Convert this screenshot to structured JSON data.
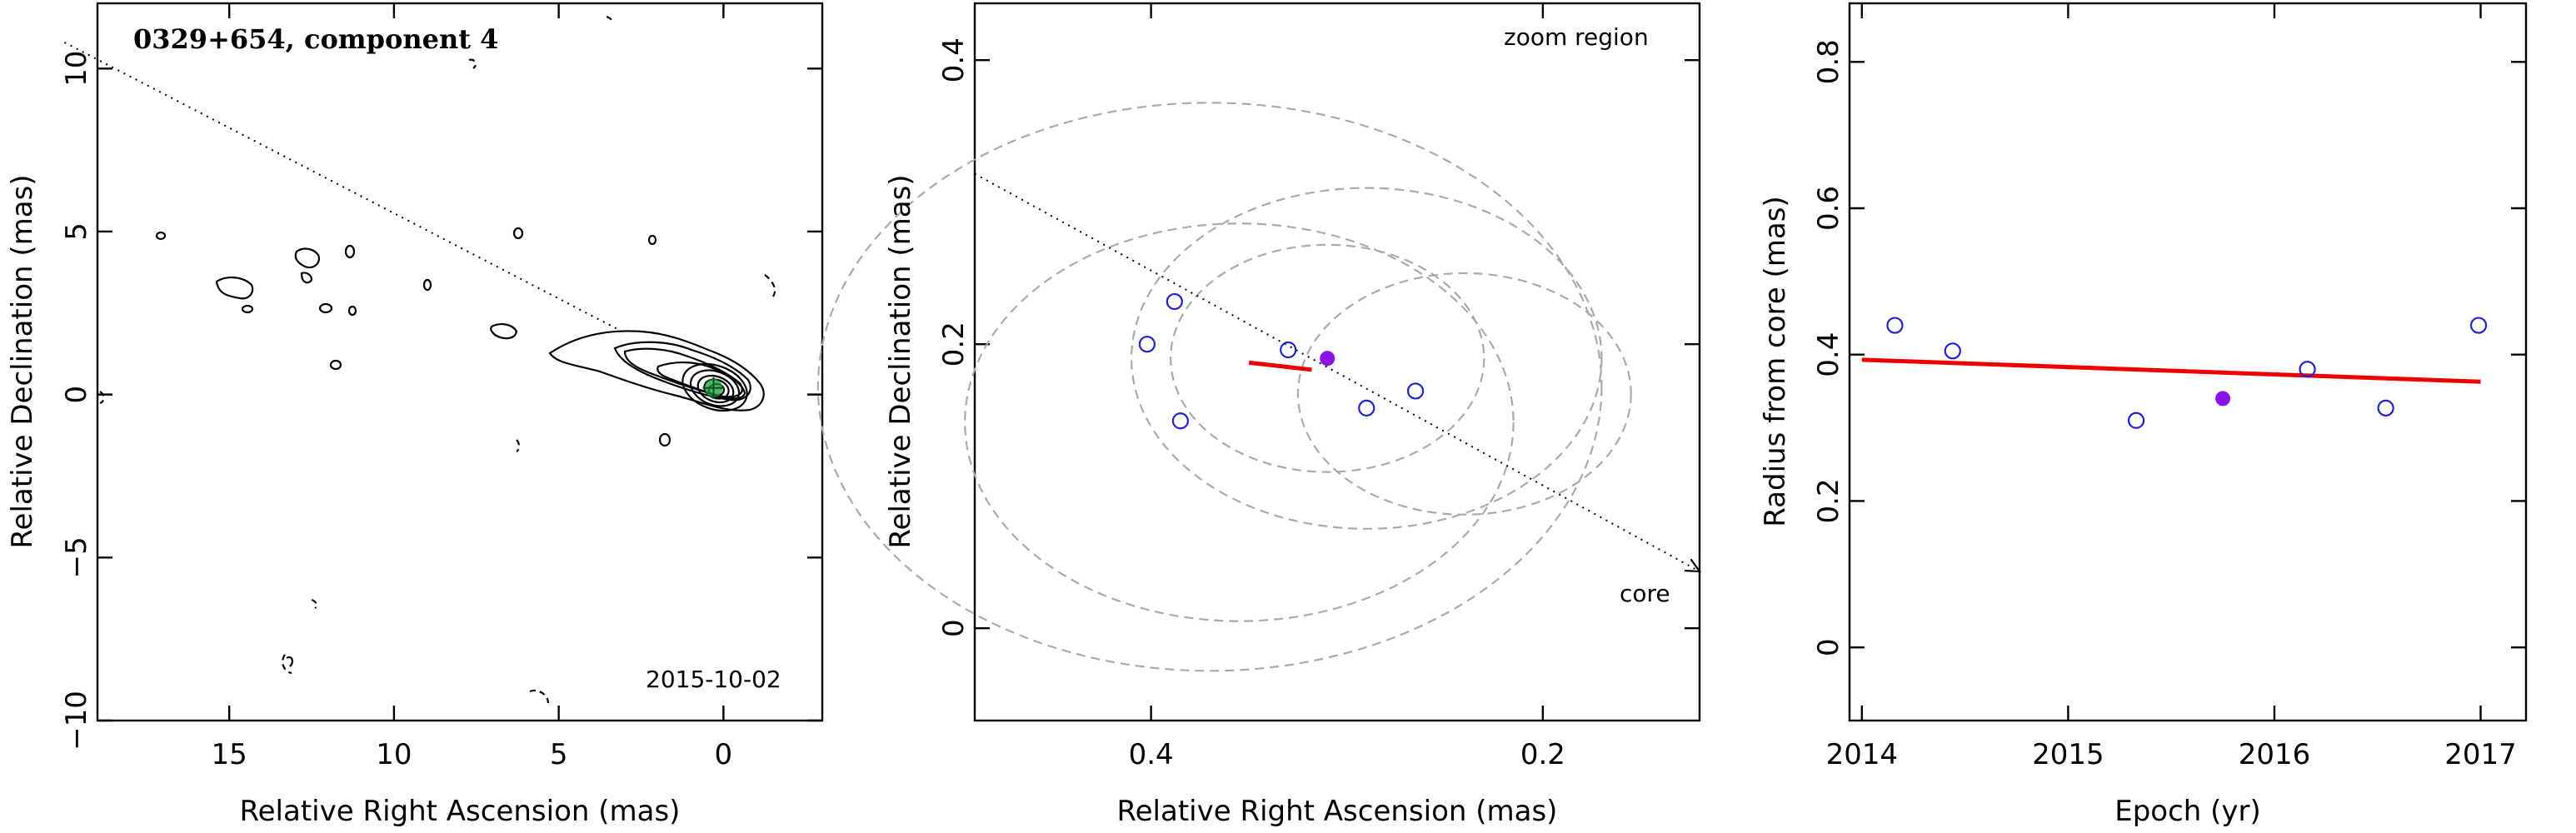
{
  "colors": {
    "open_marker": "#2222cc",
    "filled_marker": "#8a12e6",
    "fit_line": "#ee0000",
    "ellipse": "#aaaaaa",
    "core_marker": "#1a9a3a"
  },
  "chart_data": [
    {
      "type": "contour",
      "title": "0329+654, component 4",
      "date": "2015-10-02",
      "xlabel": "Relative Right Ascension (mas)",
      "ylabel": "Relative Declination (mas)",
      "xlim": [
        19,
        -3
      ],
      "ylim": [
        -10,
        12
      ],
      "xticks": [
        15,
        10,
        5,
        0
      ],
      "yticks": [
        -10,
        -5,
        0,
        5,
        10
      ],
      "direction_line": {
        "from": [
          20,
          10.8
        ],
        "to": [
          3.2,
          2.0
        ]
      },
      "core": [
        0.3,
        0.2
      ]
    },
    {
      "type": "scatter",
      "note": "zoom region",
      "xlabel": "Relative Right Ascension (mas)",
      "ylabel": "Relative Declination (mas)",
      "xlim": [
        0.49,
        0.12
      ],
      "ylim": [
        -0.065,
        0.44
      ],
      "xticks": [
        0.4,
        0.2
      ],
      "yticks": [
        0,
        0.2,
        0.4
      ],
      "arrow_label": "core",
      "arrow": {
        "from": [
          0.49,
          0.32
        ],
        "to": [
          0.12,
          0.04
        ]
      },
      "ellipses": [
        {
          "cx": 0.37,
          "cy": 0.17,
          "r": 0.2
        },
        {
          "cx": 0.355,
          "cy": 0.145,
          "r": 0.14
        },
        {
          "cx": 0.29,
          "cy": 0.19,
          "r": 0.12
        },
        {
          "cx": 0.31,
          "cy": 0.19,
          "r": 0.08
        },
        {
          "cx": 0.24,
          "cy": 0.165,
          "r": 0.085
        }
      ],
      "open_points": [
        [
          0.402,
          0.2
        ],
        [
          0.388,
          0.23
        ],
        [
          0.385,
          0.146
        ],
        [
          0.33,
          0.196
        ],
        [
          0.29,
          0.155
        ],
        [
          0.265,
          0.167
        ]
      ],
      "filled_points": [
        [
          0.31,
          0.19
        ]
      ],
      "fit_segment": {
        "from": [
          0.35,
          0.187
        ],
        "to": [
          0.318,
          0.182
        ]
      }
    },
    {
      "type": "scatter",
      "xlabel": "Epoch (yr)",
      "ylabel": "Radius from core (mas)",
      "xlim": [
        2013.94,
        2017.22
      ],
      "ylim": [
        -0.1,
        0.88
      ],
      "xticks": [
        2014,
        2015,
        2016,
        2017
      ],
      "yticks": [
        0,
        0.2,
        0.4,
        0.6,
        0.8
      ],
      "open_points": [
        [
          2014.16,
          0.44
        ],
        [
          2014.44,
          0.405
        ],
        [
          2015.33,
          0.31
        ],
        [
          2016.16,
          0.38
        ],
        [
          2016.54,
          0.327
        ],
        [
          2016.99,
          0.44
        ]
      ],
      "filled_points": [
        [
          2015.75,
          0.34
        ]
      ],
      "fit_line": {
        "from": [
          2014,
          0.393
        ],
        "to": [
          2017,
          0.363
        ]
      }
    }
  ]
}
